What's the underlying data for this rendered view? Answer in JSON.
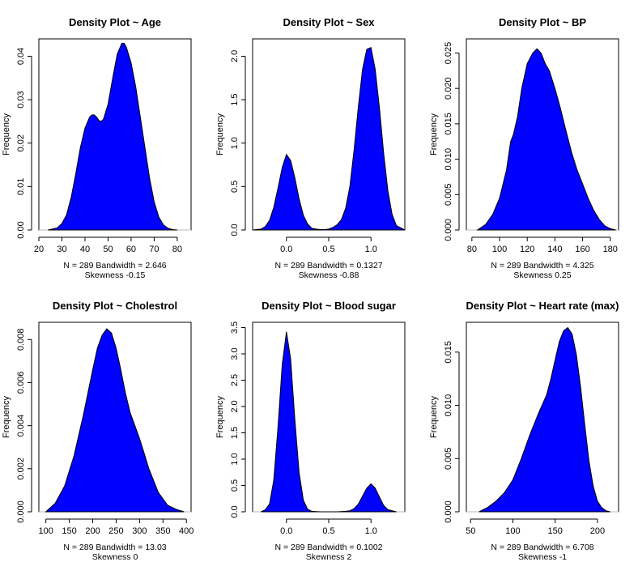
{
  "style": {
    "fill_color": "#0000ff",
    "line_color": "#000000"
  },
  "chart_data": [
    {
      "type": "area",
      "title": "Density Plot ~ Age",
      "ylabel": "Frequency",
      "xlim": [
        20,
        86
      ],
      "ylim": [
        0,
        0.044
      ],
      "xticks": [
        20,
        30,
        40,
        50,
        60,
        70,
        80
      ],
      "yticks": [
        0.0,
        0.01,
        0.02,
        0.03,
        0.04
      ],
      "ytick_labels": [
        "0.00",
        "0.01",
        "0.02",
        "0.03",
        "0.04"
      ],
      "x": [
        24,
        28,
        30,
        32,
        34,
        36,
        38,
        40,
        42,
        43,
        44,
        45,
        46,
        47,
        48,
        50,
        52,
        54,
        56,
        57,
        58,
        60,
        62,
        64,
        66,
        68,
        70,
        72,
        74,
        76,
        78,
        80
      ],
      "y": [
        0.0,
        0.0005,
        0.0015,
        0.0035,
        0.0075,
        0.013,
        0.019,
        0.0235,
        0.026,
        0.0265,
        0.0265,
        0.026,
        0.0252,
        0.025,
        0.0255,
        0.029,
        0.035,
        0.0405,
        0.043,
        0.043,
        0.042,
        0.0385,
        0.033,
        0.026,
        0.019,
        0.012,
        0.0065,
        0.003,
        0.0012,
        0.0004,
        0.0001,
        0.0
      ],
      "annotations": [
        "N = 289   Bandwidth = 2.646",
        "Skewness -0.15"
      ]
    },
    {
      "type": "area",
      "title": "Density Plot ~ Sex",
      "ylabel": "Frequency",
      "xlim": [
        -0.4,
        1.4
      ],
      "ylim": [
        0,
        2.2
      ],
      "xticks": [
        0.0,
        0.5,
        1.0
      ],
      "xtick_labels": [
        "0.0",
        "0.5",
        "1.0"
      ],
      "yticks": [
        0.0,
        0.5,
        1.0,
        1.5,
        2.0
      ],
      "ytick_labels": [
        "0.0",
        "0.5",
        "1.0",
        "1.5",
        "2.0"
      ],
      "x": [
        -0.4,
        -0.3,
        -0.25,
        -0.2,
        -0.15,
        -0.1,
        -0.05,
        0.0,
        0.05,
        0.1,
        0.15,
        0.2,
        0.25,
        0.3,
        0.35,
        0.4,
        0.45,
        0.5,
        0.55,
        0.6,
        0.65,
        0.7,
        0.75,
        0.8,
        0.85,
        0.9,
        0.95,
        1.0,
        1.05,
        1.1,
        1.15,
        1.2,
        1.25,
        1.3,
        1.4
      ],
      "y": [
        0.0,
        0.01,
        0.04,
        0.11,
        0.26,
        0.48,
        0.72,
        0.87,
        0.8,
        0.6,
        0.36,
        0.17,
        0.07,
        0.02,
        0.01,
        0.005,
        0.005,
        0.01,
        0.03,
        0.06,
        0.12,
        0.25,
        0.5,
        0.92,
        1.42,
        1.85,
        2.08,
        2.1,
        1.85,
        1.4,
        0.88,
        0.45,
        0.18,
        0.05,
        0.0
      ],
      "annotations": [
        "N = 289   Bandwidth = 0.1327",
        "Skewness -0.88"
      ]
    },
    {
      "type": "area",
      "title": "Density Plot ~ BP",
      "ylabel": "Frequency",
      "xlim": [
        76,
        186
      ],
      "ylim": [
        0,
        0.027
      ],
      "xticks": [
        80,
        100,
        120,
        140,
        160,
        180
      ],
      "yticks": [
        0.0,
        0.005,
        0.01,
        0.015,
        0.02,
        0.025
      ],
      "ytick_labels": [
        "0.000",
        "0.005",
        "0.010",
        "0.015",
        "0.020",
        "0.025"
      ],
      "x": [
        84,
        90,
        95,
        100,
        105,
        108,
        110,
        113,
        116,
        120,
        124,
        127,
        130,
        133,
        136,
        140,
        144,
        148,
        152,
        156,
        160,
        164,
        168,
        172,
        176,
        180,
        184
      ],
      "y": [
        0.0,
        0.0008,
        0.0022,
        0.0045,
        0.0085,
        0.0125,
        0.0135,
        0.016,
        0.02,
        0.0235,
        0.025,
        0.0256,
        0.025,
        0.0235,
        0.0225,
        0.02,
        0.0172,
        0.014,
        0.011,
        0.0085,
        0.0065,
        0.0045,
        0.0028,
        0.0015,
        0.0006,
        0.0002,
        0.0
      ],
      "annotations": [
        "N = 289   Bandwidth = 4.325",
        "Skewness 0.25"
      ]
    },
    {
      "type": "area",
      "title": "Density Plot ~ Cholestrol",
      "ylabel": "Frequency",
      "xlim": [
        85,
        410
      ],
      "ylim": [
        0,
        0.0088
      ],
      "xticks": [
        100,
        150,
        200,
        250,
        300,
        350,
        400
      ],
      "yticks": [
        0.0,
        0.002,
        0.004,
        0.006,
        0.008
      ],
      "ytick_labels": [
        "0.000",
        "0.002",
        "0.004",
        "0.006",
        "0.008"
      ],
      "x": [
        100,
        120,
        140,
        160,
        180,
        200,
        210,
        220,
        230,
        240,
        250,
        260,
        270,
        280,
        290,
        300,
        310,
        320,
        340,
        360,
        380,
        395
      ],
      "y": [
        0.0,
        0.0004,
        0.0012,
        0.0026,
        0.0045,
        0.0066,
        0.0076,
        0.0082,
        0.0085,
        0.0083,
        0.0076,
        0.0066,
        0.0055,
        0.0046,
        0.004,
        0.0034,
        0.0027,
        0.002,
        0.0009,
        0.0003,
        0.0001,
        0.0
      ],
      "annotations": [
        "N = 289   Bandwidth = 13.03",
        "Skewness 0"
      ]
    },
    {
      "type": "area",
      "title": "Density Plot ~ Blood sugar",
      "ylabel": "Frequency",
      "xlim": [
        -0.4,
        1.4
      ],
      "ylim": [
        0,
        3.6
      ],
      "xticks": [
        0.0,
        0.5,
        1.0
      ],
      "xtick_labels": [
        "0.0",
        "0.5",
        "1.0"
      ],
      "yticks": [
        0.0,
        0.5,
        1.0,
        1.5,
        2.0,
        2.5,
        3.0,
        3.5
      ],
      "ytick_labels": [
        "0.0",
        "0.5",
        "1.0",
        "1.5",
        "2.0",
        "2.5",
        "3.0",
        "3.5"
      ],
      "x": [
        -0.3,
        -0.25,
        -0.2,
        -0.15,
        -0.1,
        -0.05,
        0.0,
        0.05,
        0.1,
        0.15,
        0.2,
        0.25,
        0.3,
        0.4,
        0.5,
        0.6,
        0.7,
        0.75,
        0.8,
        0.85,
        0.9,
        0.95,
        1.0,
        1.05,
        1.1,
        1.15,
        1.2,
        1.3
      ],
      "y": [
        0.0,
        0.04,
        0.15,
        0.6,
        1.6,
        2.8,
        3.42,
        2.9,
        1.75,
        0.75,
        0.22,
        0.05,
        0.01,
        0.0,
        0.0,
        0.0,
        0.01,
        0.02,
        0.06,
        0.15,
        0.3,
        0.45,
        0.53,
        0.45,
        0.28,
        0.12,
        0.04,
        0.0
      ],
      "annotations": [
        "N = 289   Bandwidth = 0.1002",
        "Skewness 2"
      ]
    },
    {
      "type": "area",
      "title": "Density Plot ~ Heart rate (max)",
      "ylabel": "Frequency",
      "xlim": [
        45,
        225
      ],
      "ylim": [
        0,
        0.0178
      ],
      "xticks": [
        50,
        100,
        150,
        200
      ],
      "yticks": [
        0.0,
        0.005,
        0.01,
        0.015
      ],
      "ytick_labels": [
        "0.000",
        "0.005",
        "0.010",
        "0.015"
      ],
      "x": [
        60,
        70,
        80,
        90,
        100,
        110,
        120,
        130,
        140,
        145,
        150,
        155,
        160,
        165,
        170,
        175,
        180,
        185,
        190,
        195,
        200,
        205,
        210,
        215
      ],
      "y": [
        0.0,
        0.0004,
        0.001,
        0.0018,
        0.003,
        0.005,
        0.0072,
        0.0092,
        0.011,
        0.0125,
        0.0143,
        0.016,
        0.017,
        0.0173,
        0.0167,
        0.0148,
        0.0118,
        0.0082,
        0.0048,
        0.0024,
        0.001,
        0.0004,
        0.0001,
        0.0
      ],
      "annotations": [
        "N = 289   Bandwidth = 6.708",
        "Skewness -1"
      ]
    }
  ]
}
